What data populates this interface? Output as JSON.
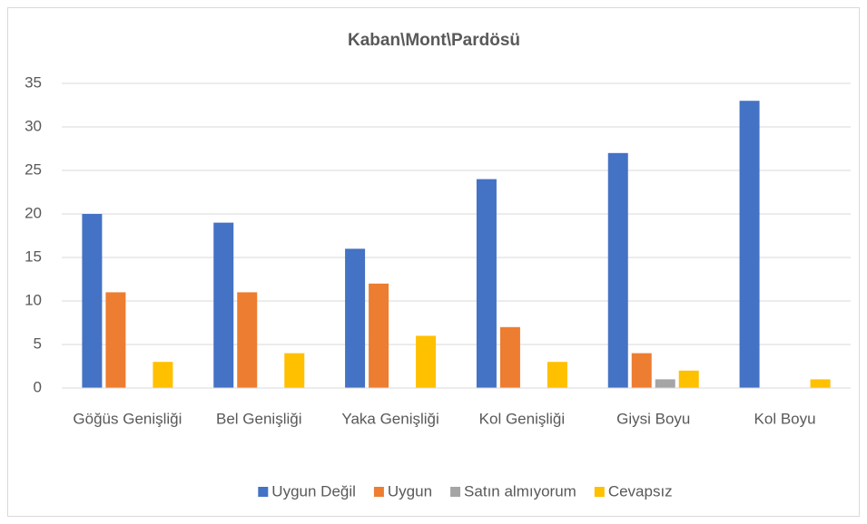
{
  "chart_data": {
    "type": "bar",
    "title": "Kaban\\Mont\\Pardösü",
    "categories": [
      "Göğüs Genişliği",
      "Bel Genişliği",
      "Yaka Genişliği",
      "Kol Genişliği",
      "Giysi Boyu",
      "Kol Boyu"
    ],
    "series": [
      {
        "name": "Uygun Değil",
        "color": "#4472c4",
        "values": [
          20,
          19,
          16,
          24,
          27,
          33
        ]
      },
      {
        "name": "Uygun",
        "color": "#ed7d31",
        "values": [
          11,
          11,
          12,
          7,
          4,
          0
        ]
      },
      {
        "name": "Satın almıyorum",
        "color": "#a5a5a5",
        "values": [
          0,
          0,
          0,
          0,
          1,
          0
        ]
      },
      {
        "name": "Cevapsız",
        "color": "#ffc000",
        "values": [
          3,
          4,
          6,
          3,
          2,
          1
        ]
      }
    ],
    "ylim": [
      0,
      35
    ],
    "yticks": [
      0,
      5,
      10,
      15,
      20,
      25,
      30,
      35
    ],
    "grid": true,
    "legend": "bottom"
  }
}
